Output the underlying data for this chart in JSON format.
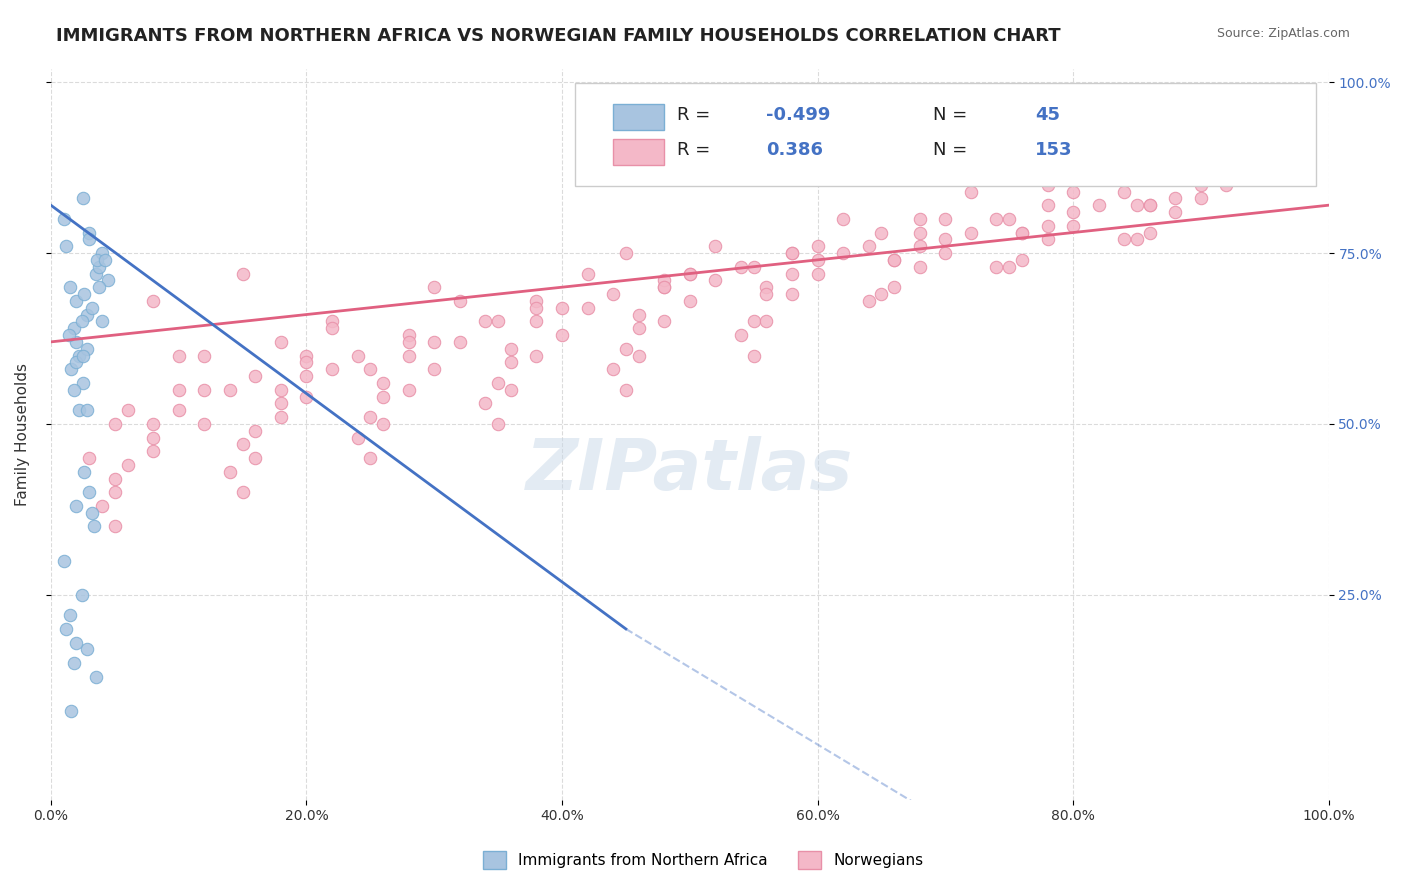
{
  "title": "IMMIGRANTS FROM NORTHERN AFRICA VS NORWEGIAN FAMILY HOUSEHOLDS CORRELATION CHART",
  "source": "Source: ZipAtlas.com",
  "xlabel": "",
  "ylabel": "Family Households",
  "watermark": "ZIPatlas",
  "xlim": [
    0.0,
    100.0
  ],
  "ylim": [
    0.0,
    100.0
  ],
  "xticks": [
    0.0,
    20.0,
    40.0,
    60.0,
    80.0,
    100.0
  ],
  "xticklabels": [
    "0.0%",
    "20.0%",
    "40.0%",
    "60.0%",
    "80.0%",
    "100.0%"
  ],
  "ytick_positions": [
    25.0,
    50.0,
    75.0,
    100.0
  ],
  "ytick_labels": [
    "25.0%",
    "50.0%",
    "75.0%",
    "100.0%"
  ],
  "legend_r1": "R = -0.499",
  "legend_n1": "N =  45",
  "legend_r2": "R =  0.386",
  "legend_n2": "N = 153",
  "blue_color": "#a8c4e0",
  "blue_edge": "#7bafd4",
  "blue_line": "#4472c4",
  "pink_color": "#f4b8c8",
  "pink_edge": "#e890a8",
  "pink_line": "#e06080",
  "series1_x": [
    2.5,
    3.0,
    1.5,
    2.0,
    4.0,
    3.5,
    2.8,
    1.8,
    2.2,
    3.8,
    1.2,
    2.6,
    3.2,
    4.5,
    2.0,
    1.0,
    2.4,
    3.6,
    1.6,
    2.8,
    3.0,
    1.4,
    2.0,
    2.5,
    3.8,
    1.8,
    2.2,
    4.2,
    1.0,
    2.6,
    3.4,
    2.0,
    1.5,
    2.8,
    3.5,
    1.2,
    2.4,
    3.0,
    2.0,
    1.8,
    2.5,
    4.0,
    1.6,
    3.2,
    2.8
  ],
  "series1_y": [
    83,
    78,
    70,
    68,
    75,
    72,
    66,
    64,
    60,
    73,
    76,
    69,
    67,
    71,
    62,
    80,
    65,
    74,
    58,
    61,
    77,
    63,
    59,
    56,
    70,
    55,
    52,
    74,
    30,
    43,
    35,
    38,
    22,
    17,
    13,
    20,
    25,
    40,
    18,
    15,
    60,
    65,
    8,
    37,
    52
  ],
  "series2_x": [
    8,
    15,
    22,
    30,
    45,
    55,
    65,
    75,
    85,
    92,
    10,
    18,
    25,
    35,
    48,
    58,
    68,
    78,
    88,
    95,
    12,
    20,
    28,
    38,
    50,
    60,
    70,
    80,
    90,
    5,
    14,
    22,
    32,
    42,
    52,
    62,
    72,
    82,
    6,
    16,
    24,
    34,
    44,
    54,
    64,
    74,
    84,
    3,
    12,
    20,
    30,
    40,
    50,
    60,
    70,
    80,
    90,
    8,
    18,
    26,
    36,
    46,
    56,
    66,
    76,
    86,
    10,
    20,
    28,
    38,
    48,
    58,
    68,
    78,
    88,
    5,
    15,
    25,
    35,
    45,
    55,
    65,
    75,
    85,
    12,
    22,
    32,
    42,
    52,
    62,
    72,
    82,
    92,
    8,
    18,
    28,
    38,
    48,
    58,
    68,
    78,
    88,
    5,
    16,
    26,
    36,
    46,
    56,
    66,
    76,
    86,
    10,
    20,
    30,
    40,
    50,
    60,
    70,
    80,
    90,
    6,
    16,
    26,
    36,
    46,
    56,
    66,
    76,
    86,
    4,
    14,
    24,
    34,
    44,
    54,
    64,
    74,
    84,
    8,
    18,
    28,
    38,
    48,
    58,
    68,
    78,
    88,
    5,
    15,
    25,
    35,
    45,
    55
  ],
  "series2_y": [
    68,
    72,
    65,
    70,
    75,
    73,
    78,
    80,
    82,
    85,
    60,
    62,
    58,
    65,
    70,
    72,
    76,
    79,
    83,
    88,
    55,
    60,
    63,
    68,
    72,
    74,
    77,
    81,
    85,
    50,
    55,
    58,
    62,
    67,
    71,
    75,
    78,
    82,
    52,
    57,
    60,
    65,
    69,
    73,
    76,
    80,
    84,
    45,
    50,
    54,
    58,
    63,
    68,
    72,
    75,
    79,
    83,
    48,
    53,
    56,
    61,
    66,
    70,
    74,
    78,
    82,
    55,
    59,
    62,
    67,
    71,
    75,
    78,
    82,
    86,
    42,
    47,
    51,
    56,
    61,
    65,
    69,
    73,
    77,
    60,
    64,
    68,
    72,
    76,
    80,
    84,
    88,
    92,
    46,
    51,
    55,
    60,
    65,
    69,
    73,
    77,
    81,
    40,
    45,
    50,
    55,
    60,
    65,
    70,
    74,
    78,
    52,
    57,
    62,
    67,
    72,
    76,
    80,
    84,
    88,
    44,
    49,
    54,
    59,
    64,
    69,
    74,
    78,
    82,
    38,
    43,
    48,
    53,
    58,
    63,
    68,
    73,
    77,
    50,
    55,
    60,
    65,
    70,
    75,
    80,
    85,
    90,
    35,
    40,
    45,
    50,
    55,
    60
  ],
  "trend1_x": [
    0.0,
    45.0
  ],
  "trend1_y": [
    82.0,
    20.0
  ],
  "trend2_x": [
    0.0,
    100.0
  ],
  "trend2_y": [
    62.0,
    82.0
  ],
  "grid_color": "#cccccc",
  "grid_style": "--",
  "background_color": "#ffffff",
  "title_fontsize": 13,
  "axis_label_fontsize": 11,
  "tick_fontsize": 10,
  "watermark_color": "#c8d8e8",
  "watermark_alpha": 0.5
}
